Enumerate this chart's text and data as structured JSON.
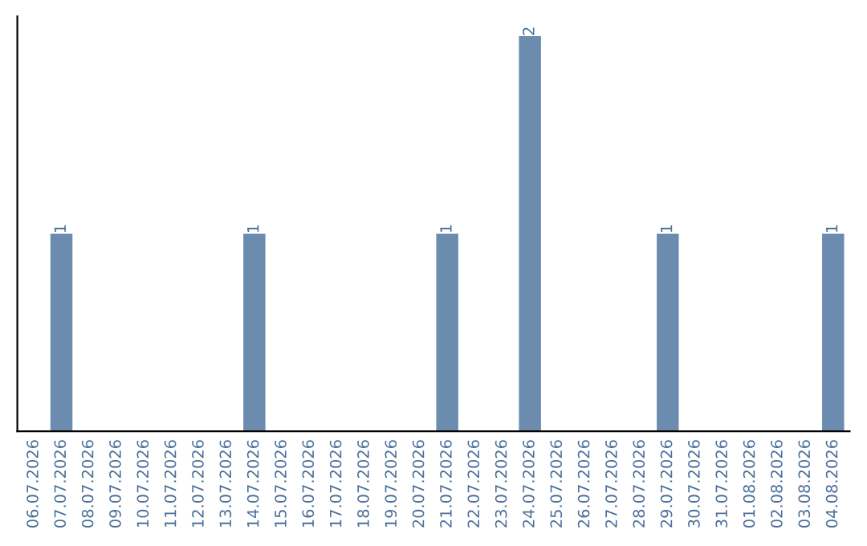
{
  "chart_data": {
    "type": "bar",
    "categories": [
      "06.07.2026",
      "07.07.2026",
      "08.07.2026",
      "09.07.2026",
      "10.07.2026",
      "11.07.2026",
      "12.07.2026",
      "13.07.2026",
      "14.07.2026",
      "15.07.2026",
      "16.07.2026",
      "17.07.2026",
      "18.07.2026",
      "19.07.2026",
      "20.07.2026",
      "21.07.2026",
      "22.07.2026",
      "23.07.2026",
      "24.07.2026",
      "25.07.2026",
      "26.07.2026",
      "27.07.2026",
      "28.07.2026",
      "29.07.2026",
      "30.07.2026",
      "31.07.2026",
      "01.08.2026",
      "02.08.2026",
      "03.08.2026",
      "04.08.2026"
    ],
    "values": [
      0,
      1,
      0,
      0,
      0,
      0,
      0,
      0,
      1,
      0,
      0,
      0,
      0,
      0,
      0,
      1,
      0,
      0,
      2,
      0,
      0,
      0,
      0,
      1,
      0,
      0,
      0,
      0,
      0,
      1
    ],
    "color": "#6b8cae",
    "value_labels": [
      null,
      "1",
      null,
      null,
      null,
      null,
      null,
      null,
      "1",
      null,
      null,
      null,
      null,
      null,
      null,
      "1",
      null,
      null,
      "2",
      null,
      null,
      null,
      null,
      "1",
      null,
      null,
      null,
      null,
      null,
      "1"
    ],
    "tick_labels": "x",
    "grid": false,
    "legend": false
  }
}
